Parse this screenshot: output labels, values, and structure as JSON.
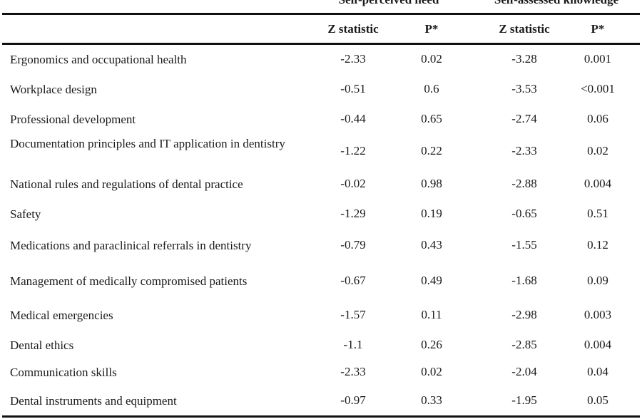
{
  "table": {
    "groups": {
      "need": "Self-perceived need",
      "knowledge": "Self-assessed knowledge"
    },
    "columns": [
      "Z statistic",
      "P*",
      "Z statistic",
      "P*"
    ],
    "rows": [
      {
        "label": "Ergonomics and occupational health",
        "need_z": "-2.33",
        "need_p": "0.02",
        "know_z": "-3.28",
        "know_p": "0.001"
      },
      {
        "label": "Workplace design",
        "need_z": "-0.51",
        "need_p": "0.6",
        "know_z": "-3.53",
        "know_p": "<0.001"
      },
      {
        "label": "Professional development",
        "need_z": "-0.44",
        "need_p": "0.65",
        "know_z": "-2.74",
        "know_p": "0.06"
      },
      {
        "label": "Documentation principles and IT application in dentistry",
        "need_z": "-1.22",
        "need_p": "0.22",
        "know_z": "-2.33",
        "know_p": "0.02"
      },
      {
        "label": "National rules and regulations of dental practice",
        "need_z": "-0.02",
        "need_p": "0.98",
        "know_z": "-2.88",
        "know_p": "0.004"
      },
      {
        "label": "Safety",
        "need_z": "-1.29",
        "need_p": "0.19",
        "know_z": "-0.65",
        "know_p": "0.51"
      },
      {
        "label": "Medications and paraclinical referrals in dentistry",
        "need_z": "-0.79",
        "need_p": "0.43",
        "know_z": "-1.55",
        "know_p": "0.12"
      },
      {
        "label": "Management of medically compromised patients",
        "need_z": "-0.67",
        "need_p": "0.49",
        "know_z": "-1.68",
        "know_p": "0.09"
      },
      {
        "label": "Medical emergencies",
        "need_z": "-1.57",
        "need_p": "0.11",
        "know_z": "-2.98",
        "know_p": "0.003"
      },
      {
        "label": "Dental ethics",
        "need_z": "-1.1",
        "need_p": "0.26",
        "know_z": "-2.85",
        "know_p": "0.004"
      },
      {
        "label": "Communication skills",
        "need_z": "-2.33",
        "need_p": "0.02",
        "know_z": "-2.04",
        "know_p": "0.04"
      },
      {
        "label": "Dental instruments and equipment",
        "need_z": "-0.97",
        "need_p": "0.33",
        "know_z": "-1.95",
        "know_p": "0.05"
      }
    ]
  }
}
